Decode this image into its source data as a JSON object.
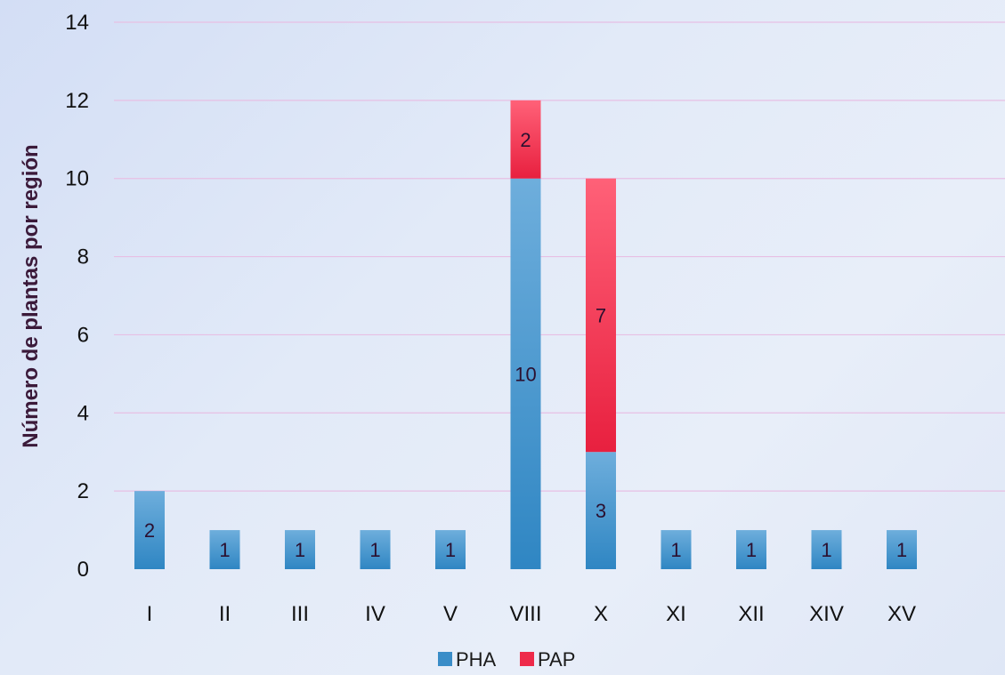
{
  "chart_data": {
    "type": "bar",
    "stacked": true,
    "categories": [
      "I",
      "II",
      "III",
      "IV",
      "V",
      "VIII",
      "X",
      "XI",
      "XII",
      "XIV",
      "XV"
    ],
    "series": [
      {
        "name": "PHA",
        "values": [
          2,
          1,
          1,
          1,
          1,
          10,
          3,
          1,
          1,
          1,
          1
        ],
        "color": "#3a8dc8"
      },
      {
        "name": "PAP",
        "values": [
          0,
          0,
          0,
          0,
          0,
          2,
          7,
          0,
          0,
          0,
          0
        ],
        "color": "#ee2a4a"
      }
    ],
    "ylabel": "Número de plantas por región",
    "xlabel": "",
    "ylim": [
      0,
      14
    ],
    "yticks": [
      0,
      2,
      4,
      6,
      8,
      10,
      12,
      14
    ],
    "grid": true,
    "legend_position": "bottom-center"
  }
}
